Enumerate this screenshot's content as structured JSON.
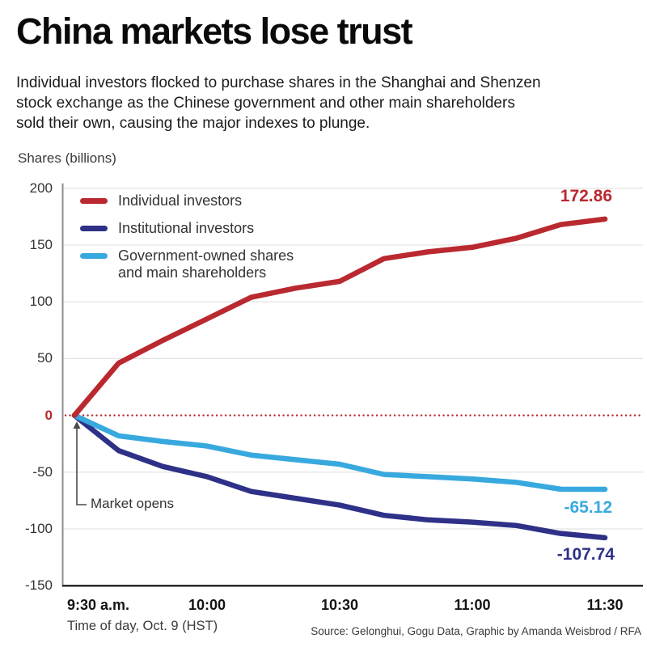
{
  "header": {
    "title": "China markets lose trust",
    "subtitle_lines": [
      "Individual investors flocked to purchase shares in the Shanghai and Shenzen",
      "stock exchange as the Chinese government and other main shareholders",
      "sold their own, causing the major indexes to plunge."
    ],
    "units_label": "Shares (billions)"
  },
  "chart_data": {
    "type": "line",
    "title": "China markets lose trust",
    "ylabel": "Shares (billions)",
    "xlabel": "Time of day, Oct. 9 (HST)",
    "ylim": [
      -150,
      200
    ],
    "grid": true,
    "legend_position": "top-left",
    "zero_line": {
      "style": "dotted",
      "color": "#b9292f"
    },
    "x_minutes_after_930": [
      0,
      10,
      20,
      30,
      40,
      50,
      60,
      70,
      80,
      90,
      100,
      110,
      120
    ],
    "x_times": [
      "9:30",
      "9:40",
      "9:50",
      "10:00",
      "10:10",
      "10:20",
      "10:30",
      "10:40",
      "10:50",
      "11:00",
      "11:10",
      "11:20",
      "11:30"
    ],
    "series": [
      {
        "name": "Individual investors",
        "color": "#b9292f",
        "values": [
          0,
          46,
          66,
          85,
          104,
          112,
          118,
          138,
          144,
          148,
          156,
          168,
          172.86
        ],
        "end_label": "172.86"
      },
      {
        "name": "Institutional investors",
        "color": "#2e3187",
        "values": [
          0,
          -31,
          -45,
          -54,
          -67,
          -73,
          -79,
          -88,
          -92,
          -94,
          -97,
          -104,
          -107.74
        ],
        "end_label": "-107.74"
      },
      {
        "name": "Government-owned shares and main shareholders",
        "color": "#38a9de",
        "values": [
          0,
          -18,
          -23,
          -27,
          -35,
          -39,
          -43,
          -52,
          -54,
          -56,
          -59,
          -65,
          -65.12
        ],
        "end_label": "-65.12"
      }
    ],
    "yticks": [
      200,
      150,
      100,
      50,
      0,
      -50,
      -100,
      -150
    ],
    "xticks": [
      {
        "label": "9:30 a.m.",
        "minutes": 0
      },
      {
        "label": "10:00",
        "minutes": 30
      },
      {
        "label": "10:30",
        "minutes": 60
      },
      {
        "label": "11:00",
        "minutes": 90
      },
      {
        "label": "11:30",
        "minutes": 120
      }
    ],
    "annotations": {
      "market_opens": "Market opens"
    }
  },
  "legend": {
    "items": [
      {
        "label": "Individual investors"
      },
      {
        "label": "Institutional investors"
      },
      {
        "label": "Government-owned shares and main shareholders"
      }
    ]
  },
  "footer": {
    "xaxis_title": "Time of day, Oct. 9 (HST)",
    "source": "Source: Gelonghui, Gogu Data, Graphic by Amanda Weisbrod / RFA"
  },
  "colors": {
    "individual": "#b9292f",
    "institutional": "#2e3187",
    "government": "#38a9de",
    "gridline": "#dcdcdc",
    "y_axis": "#8e8e8e",
    "x_axis": "#2a2a2a"
  }
}
